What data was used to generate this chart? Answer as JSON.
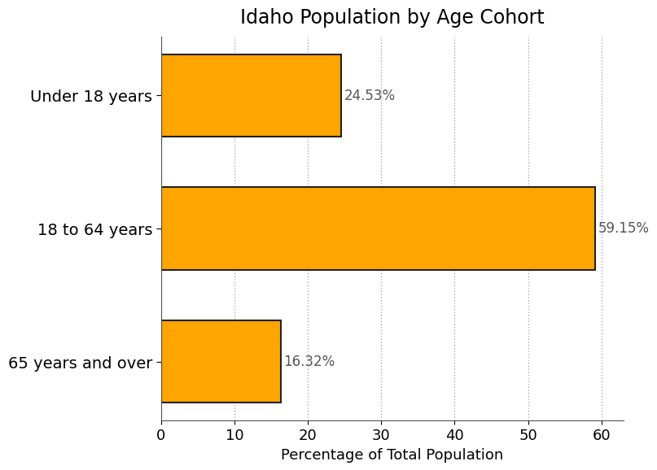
{
  "title": "Idaho Population by Age Cohort",
  "categories": [
    "Under 18 years",
    "18 to 64 years",
    "65 years and over"
  ],
  "values": [
    24.53,
    59.15,
    16.32
  ],
  "labels": [
    "24.53%",
    "59.15%",
    "16.32%"
  ],
  "bar_color": "#FFA500",
  "bar_edgecolor": "#222222",
  "bar_linewidth": 1.5,
  "xlabel": "Percentage of Total Population",
  "xlim": [
    0,
    63
  ],
  "xticks": [
    0,
    10,
    20,
    30,
    40,
    50,
    60
  ],
  "title_fontsize": 17,
  "xlabel_fontsize": 13,
  "tick_fontsize": 13,
  "ytick_fontsize": 14,
  "label_fontsize": 12,
  "grid_color": "#aaaaaa",
  "grid_linestyle": ":",
  "background_color": "#ffffff",
  "bar_height": 0.62,
  "label_color": "#555555",
  "spine_color": "#555555"
}
